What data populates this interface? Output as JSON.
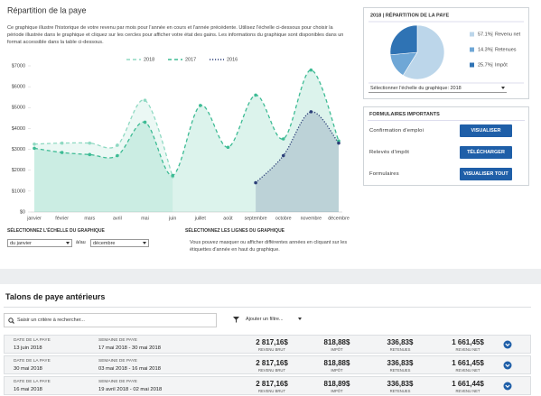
{
  "chart_data": [
    {
      "type": "line",
      "title": "Répartition de la paye",
      "description": "Ce graphique illustre l'historique de votre revenu par mois pour l'année en cours et l'année précédente. Utilisez l'échelle ci-dessous pour choisir la période illustrée dans le graphique et cliquez sur les cercles pour afficher votre état des gains. Les informations du graphique sont disponibles dans un format accessible dans la table ci-dessous.",
      "categories": [
        "janvier",
        "février",
        "mars",
        "avril",
        "mai",
        "juin",
        "juillet",
        "août",
        "septembre",
        "octobre",
        "novembre",
        "décembre"
      ],
      "series": [
        {
          "name": "2018",
          "color": "#8fd9c2",
          "line_style": "dashed",
          "values": [
            3250,
            3300,
            3300,
            3200,
            5350,
            1700,
            null,
            null,
            null,
            null,
            null,
            null
          ]
        },
        {
          "name": "2017",
          "color": "#3dbb94",
          "line_style": "dashed",
          "values": [
            3050,
            2850,
            2750,
            2700,
            4300,
            1750,
            5100,
            3100,
            5600,
            3500,
            6800,
            3400
          ]
        },
        {
          "name": "2016",
          "color": "#2c3f78",
          "line_style": "dotted",
          "values": [
            null,
            null,
            null,
            null,
            null,
            null,
            null,
            null,
            1400,
            2700,
            4800,
            3300
          ]
        }
      ],
      "ylim": [
        0,
        7000
      ],
      "yticks": [
        {
          "value": 0,
          "label": "$0"
        },
        {
          "value": 1000,
          "label": "$1000"
        },
        {
          "value": 2000,
          "label": "$2000"
        },
        {
          "value": 3000,
          "label": "$3000"
        },
        {
          "value": 4000,
          "label": "$4000"
        },
        {
          "value": 5000,
          "label": "$5000"
        },
        {
          "value": 6000,
          "label": "$6000"
        },
        {
          "value": 7000,
          "label": "$7000"
        }
      ],
      "grid": false
    },
    {
      "type": "pie",
      "title": "2018 | RÉPARTITION DE LA PAYE",
      "categories": [
        "Revenu net",
        "Retenues",
        "Impôt"
      ],
      "values": [
        57.1,
        14.3,
        25.7
      ],
      "value_labels": [
        "57.1%",
        "14.3%",
        "25.7%"
      ],
      "colors": [
        "#bcd6ea",
        "#6fa7d6",
        "#2f73b4"
      ]
    }
  ],
  "pie_selector": "Sélectionner l'échelle du graphique: 2018",
  "scale_controls": {
    "title": "SÉLECTIONNEZ L'ÉCHELLE DU GRAPHIQUE",
    "from": "du janvier",
    "separator": "à/au",
    "to": "décembre"
  },
  "lines_controls": {
    "title": "SÉLECTIONNEZ LES LIGNES DU GRAPHIQUE",
    "text": "Vous pouvez masquer ou afficher différentes années en cliquant sur les étiquettes d'année en haut du graphique."
  },
  "forms": {
    "title": "FORMULAIRES IMPORTANTS",
    "rows": [
      {
        "label": "Confirmation d'emploi",
        "button": "VISUALISER"
      },
      {
        "label": "Relevés d'impôt",
        "button": "TÉLÉCHARGER"
      },
      {
        "label": "Formulaires",
        "button": "VISUALISER TOUT"
      }
    ]
  },
  "history": {
    "title": "Talons de paye antérieurs",
    "search": "Saisir un critère à rechercher...",
    "filter": "Ajouter un filtre...",
    "rows": [
      [
        "DATE DE LA PAYE",
        "13 juin 2018",
        "SEMAINE DE PAYE",
        "17 mai 2018 - 30 mai 2018",
        "2 817,16$",
        "REVENU BRUT",
        "818,88$",
        "IMPÔT",
        "336,83$",
        "RETENUES",
        "1 661,45$",
        "REVENU NET"
      ],
      [
        "DATE DE LA PAYE",
        "30 mai 2018",
        "SEMAINE DE PAYE",
        "03 mai 2018 - 16 mai 2018",
        "2 817,16$",
        "REVENU BRUT",
        "818,88$",
        "IMPÔT",
        "336,83$",
        "RETENUES",
        "1 661,45$",
        "REVENU NET"
      ],
      [
        "DATE DE LA PAYE",
        "16 mai 2018",
        "SEMAINE DE PAYE",
        "19 avril 2018 - 02 mai 2018",
        "2 817,16$",
        "REVENU BRUT",
        "818,89$",
        "IMPÔT",
        "336,83$",
        "RETENUES",
        "1 661,44$",
        "REVENU NET"
      ]
    ]
  }
}
